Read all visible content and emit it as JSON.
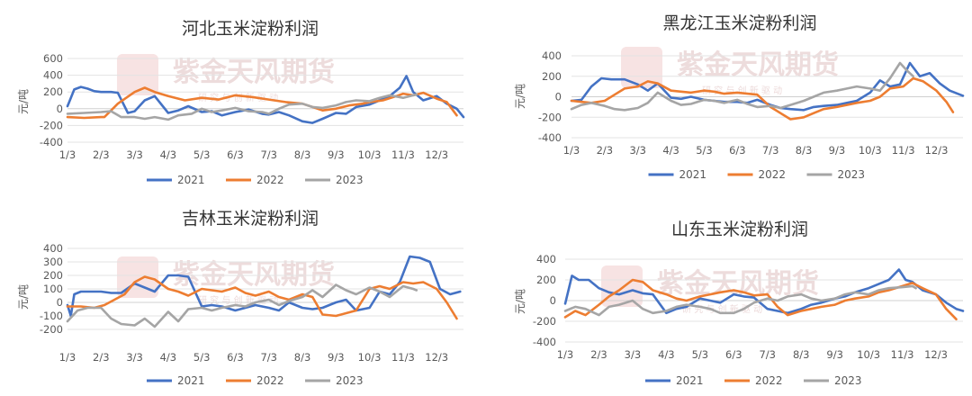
{
  "charts": [
    {
      "title": "河北玉米淀粉利润"
    },
    {
      "title": "黑龙江玉米淀粉利润"
    },
    {
      "title": "吉林玉米淀粉利润"
    },
    {
      "title": "山东玉米淀粉利润"
    }
  ],
  "watermark": {
    "text": "紫金天风期货",
    "sub": "研 究 与 创 新 驱 动"
  },
  "colors": {
    "2021": "#4472C4",
    "2022": "#ED7D31",
    "2023": "#A5A5A5"
  },
  "chart_data": [
    {
      "type": "line",
      "title": "河北玉米淀粉利润",
      "ylabel": "元/吨",
      "xlabel": "",
      "ylim": [
        -400,
        600
      ],
      "yticks": [
        -400,
        -200,
        0,
        200,
        400,
        600
      ],
      "x_ticklabels": [
        "1/3",
        "2/3",
        "3/3",
        "4/3",
        "5/3",
        "6/3",
        "7/3",
        "8/3",
        "9/3",
        "10/3",
        "11/3",
        "12/3"
      ],
      "x_unit": "month index (1=1/3)",
      "legend": [
        "2021",
        "2022",
        "2023"
      ],
      "legend_position": "bottom",
      "grid": true,
      "series": [
        {
          "name": "2021",
          "x": [
            1,
            1.05,
            1.2,
            1.4,
            1.6,
            1.8,
            2,
            2.3,
            2.5,
            2.8,
            3,
            3.3,
            3.6,
            4,
            4.3,
            4.6,
            5,
            5.3,
            5.6,
            6,
            6.4,
            6.8,
            7,
            7.3,
            7.6,
            8,
            8.3,
            8.6,
            9,
            9.3,
            9.6,
            10,
            10.3,
            10.6,
            10.9,
            11.1,
            11.3,
            11.6,
            12,
            12.3,
            12.6,
            12.8
          ],
          "y": [
            30,
            80,
            230,
            260,
            240,
            210,
            200,
            200,
            190,
            -50,
            -30,
            100,
            150,
            -50,
            -20,
            30,
            -40,
            -30,
            -80,
            -40,
            -10,
            -60,
            -70,
            -40,
            -80,
            -150,
            -170,
            -120,
            -50,
            -60,
            20,
            50,
            100,
            150,
            250,
            390,
            200,
            100,
            150,
            60,
            0,
            -100
          ]
        },
        {
          "name": "2022",
          "x": [
            1,
            1.5,
            2,
            2.1,
            2.5,
            3,
            3.3,
            3.6,
            4,
            4.5,
            5,
            5.5,
            6,
            6.5,
            7,
            7.5,
            8,
            8.3,
            8.6,
            9,
            9.4,
            9.8,
            10,
            10.4,
            10.8,
            11,
            11.3,
            11.6,
            12,
            12.3,
            12.6
          ],
          "y": [
            -100,
            -110,
            -100,
            -100,
            60,
            200,
            250,
            200,
            150,
            100,
            130,
            110,
            160,
            140,
            110,
            80,
            60,
            20,
            -20,
            0,
            40,
            60,
            80,
            100,
            150,
            180,
            160,
            190,
            120,
            80,
            -80
          ]
        },
        {
          "name": "2023",
          "x": [
            1,
            1.5,
            2,
            2.3,
            2.6,
            3,
            3.3,
            3.6,
            4,
            4.3,
            4.7,
            5,
            5.3,
            5.6,
            6,
            6.4,
            6.8,
            7,
            7.3,
            7.6,
            8,
            8.3,
            8.6,
            9,
            9.3,
            9.6,
            10,
            10.3,
            10.6,
            11,
            11.3,
            11.4
          ],
          "y": [
            -60,
            -50,
            -40,
            -30,
            -100,
            -100,
            -120,
            -100,
            -130,
            -80,
            -60,
            0,
            -40,
            -20,
            10,
            -30,
            -40,
            -60,
            0,
            50,
            60,
            20,
            10,
            40,
            80,
            100,
            90,
            130,
            160,
            130,
            160,
            170
          ]
        }
      ]
    },
    {
      "type": "line",
      "title": "黑龙江玉米淀粉利润",
      "ylabel": "元/吨",
      "xlabel": "",
      "ylim": [
        -400,
        400
      ],
      "yticks": [
        -400,
        -200,
        0,
        200,
        400
      ],
      "x_ticklabels": [
        "1/3",
        "2/3",
        "3/3",
        "4/3",
        "5/3",
        "6/3",
        "7/3",
        "8/3",
        "9/3",
        "10/3",
        "11/3",
        "12/3"
      ],
      "x_unit": "month index (1=1/3)",
      "legend": [
        "2021",
        "2022",
        "2023"
      ],
      "legend_position": "bottom",
      "grid": true,
      "series": [
        {
          "name": "2021",
          "x": [
            1,
            1.3,
            1.6,
            1.9,
            2.2,
            2.6,
            3,
            3.3,
            3.6,
            4,
            4.3,
            4.6,
            5,
            5.3,
            5.6,
            6,
            6.3,
            6.6,
            7,
            7.3,
            7.6,
            8,
            8.3,
            8.6,
            9,
            9.3,
            9.6,
            10,
            10.3,
            10.6,
            10.9,
            11.2,
            11.5,
            11.8,
            12.1,
            12.4,
            12.8
          ],
          "y": [
            -40,
            -30,
            100,
            180,
            170,
            170,
            120,
            60,
            130,
            -10,
            -20,
            0,
            -30,
            -40,
            -50,
            -50,
            -60,
            -30,
            -80,
            -110,
            -120,
            -130,
            -100,
            -90,
            -80,
            -60,
            -40,
            40,
            160,
            100,
            120,
            330,
            200,
            230,
            130,
            60,
            10
          ]
        },
        {
          "name": "2022",
          "x": [
            1,
            1.3,
            1.6,
            2,
            2.3,
            2.6,
            3,
            3.3,
            3.6,
            4,
            4.3,
            4.6,
            5,
            5.3,
            5.6,
            6,
            6.3,
            6.6,
            7,
            7.3,
            7.6,
            8,
            8.3,
            8.6,
            9,
            9.3,
            9.6,
            10,
            10.3,
            10.6,
            11,
            11.3,
            11.6,
            12,
            12.3,
            12.5
          ],
          "y": [
            -40,
            -50,
            -60,
            -40,
            20,
            80,
            100,
            150,
            130,
            60,
            50,
            40,
            60,
            50,
            30,
            40,
            30,
            20,
            -100,
            -160,
            -220,
            -200,
            -160,
            -120,
            -100,
            -80,
            -60,
            -40,
            0,
            80,
            100,
            180,
            150,
            60,
            -50,
            -150
          ]
        },
        {
          "name": "2023",
          "x": [
            1,
            1.3,
            1.6,
            2,
            2.3,
            2.6,
            3,
            3.3,
            3.6,
            4,
            4.3,
            4.6,
            5,
            5.3,
            5.6,
            6,
            6.3,
            6.6,
            7,
            7.3,
            7.6,
            8,
            8.3,
            8.6,
            9,
            9.3,
            9.6,
            10,
            10.3,
            10.6,
            10.9,
            11.1,
            11.3
          ],
          "y": [
            -120,
            -80,
            -60,
            -90,
            -120,
            -130,
            -110,
            -60,
            40,
            -40,
            -80,
            -70,
            -30,
            -40,
            -60,
            -30,
            -70,
            -100,
            -90,
            -110,
            -80,
            -40,
            0,
            40,
            60,
            80,
            100,
            80,
            60,
            180,
            330,
            260,
            200
          ]
        }
      ]
    },
    {
      "type": "line",
      "title": "吉林玉米淀粉利润",
      "ylabel": "元/吨",
      "xlabel": "",
      "ylim": [
        -200,
        400
      ],
      "yticks": [
        -200,
        -100,
        0,
        100,
        200,
        300,
        400
      ],
      "x_ticklabels": [
        "1/3",
        "2/3",
        "3/3",
        "4/3",
        "5/3",
        "6/3",
        "7/3",
        "8/3",
        "9/3",
        "10/3",
        "11/3",
        "12/3"
      ],
      "x_unit": "month index (1=1/3)",
      "legend": [
        "2021",
        "2022",
        "2023"
      ],
      "legend_position": "bottom",
      "grid": true,
      "series": [
        {
          "name": "2021",
          "x": [
            1,
            1.1,
            1.2,
            1.4,
            1.7,
            2,
            2.3,
            2.6,
            3,
            3.3,
            3.6,
            4,
            4.3,
            4.6,
            5,
            5.3,
            5.6,
            6,
            6.3,
            6.6,
            7,
            7.3,
            7.6,
            8,
            8.3,
            8.6,
            9,
            9.3,
            9.6,
            10,
            10.3,
            10.6,
            10.9,
            11.2,
            11.5,
            11.8,
            12.1,
            12.4,
            12.7
          ],
          "y": [
            -20,
            -100,
            60,
            80,
            80,
            80,
            70,
            70,
            140,
            110,
            80,
            200,
            200,
            190,
            -30,
            -20,
            -30,
            -60,
            -40,
            -20,
            -40,
            -60,
            0,
            -40,
            -50,
            -40,
            0,
            20,
            -60,
            -40,
            80,
            60,
            150,
            340,
            330,
            300,
            100,
            60,
            80
          ]
        },
        {
          "name": "2022",
          "x": [
            1,
            1.4,
            1.8,
            2.1,
            2.4,
            2.7,
            3,
            3.3,
            3.6,
            4,
            4.3,
            4.6,
            5,
            5.3,
            5.6,
            6,
            6.3,
            6.6,
            7,
            7.3,
            7.6,
            8,
            8.3,
            8.6,
            9,
            9.3,
            9.6,
            10,
            10.3,
            10.6,
            11,
            11.3,
            11.6,
            12,
            12.3,
            12.6
          ],
          "y": [
            -30,
            -30,
            -40,
            -20,
            20,
            60,
            150,
            190,
            170,
            100,
            80,
            50,
            100,
            90,
            80,
            110,
            70,
            50,
            80,
            40,
            20,
            60,
            40,
            -90,
            -100,
            -80,
            -60,
            100,
            120,
            100,
            150,
            140,
            150,
            100,
            0,
            -120
          ]
        },
        {
          "name": "2023",
          "x": [
            1,
            1.3,
            1.6,
            2,
            2.3,
            2.6,
            3,
            3.3,
            3.6,
            4,
            4.3,
            4.6,
            5,
            5.3,
            5.6,
            6,
            6.3,
            6.6,
            7,
            7.3,
            7.6,
            8,
            8.3,
            8.6,
            9,
            9.3,
            9.6,
            10,
            10.3,
            10.6,
            11,
            11.3,
            11.4
          ],
          "y": [
            -140,
            -60,
            -40,
            -40,
            -120,
            -160,
            -170,
            -120,
            -180,
            -70,
            -140,
            -50,
            -40,
            -60,
            -40,
            -20,
            -30,
            0,
            20,
            -20,
            10,
            40,
            90,
            40,
            130,
            90,
            60,
            110,
            80,
            40,
            120,
            100,
            90
          ]
        }
      ]
    },
    {
      "type": "line",
      "title": "山东玉米淀粉利润",
      "ylabel": "元/吨",
      "xlabel": "",
      "ylim": [
        -400,
        400
      ],
      "yticks": [
        -400,
        -200,
        0,
        200,
        400
      ],
      "x_ticklabels": [
        "1/3",
        "2/3",
        "3/3",
        "4/3",
        "5/3",
        "6/3",
        "7/3",
        "8/3",
        "9/3",
        "10/3",
        "11/3",
        "12/3"
      ],
      "x_unit": "month index (1=1/3)",
      "legend": [
        "2021",
        "2022",
        "2023"
      ],
      "legend_position": "bottom",
      "grid": true,
      "series": [
        {
          "name": "2021",
          "x": [
            1,
            1.2,
            1.4,
            1.7,
            2,
            2.3,
            2.6,
            3,
            3.3,
            3.6,
            4,
            4.3,
            4.6,
            5,
            5.3,
            5.6,
            6,
            6.3,
            6.6,
            7,
            7.3,
            7.6,
            8,
            8.3,
            8.6,
            9,
            9.3,
            9.6,
            10,
            10.3,
            10.6,
            10.9,
            11.1,
            11.3,
            11.6,
            12,
            12.3,
            12.6,
            12.8
          ],
          "y": [
            -30,
            240,
            200,
            200,
            120,
            80,
            60,
            100,
            70,
            60,
            -120,
            -80,
            -60,
            20,
            0,
            -20,
            60,
            40,
            30,
            -80,
            -100,
            -120,
            -80,
            -40,
            -20,
            20,
            40,
            80,
            120,
            160,
            200,
            300,
            200,
            180,
            100,
            60,
            -20,
            -80,
            -100
          ]
        },
        {
          "name": "2022",
          "x": [
            1,
            1.3,
            1.6,
            2,
            2.3,
            2.6,
            3,
            3.3,
            3.6,
            4,
            4.3,
            4.6,
            5,
            5.3,
            5.6,
            6,
            6.3,
            6.6,
            7,
            7.3,
            7.6,
            8,
            8.3,
            8.6,
            9,
            9.3,
            9.6,
            10,
            10.3,
            10.6,
            11,
            11.3,
            11.6,
            12,
            12.3,
            12.6
          ],
          "y": [
            -160,
            -100,
            -140,
            -40,
            40,
            100,
            200,
            180,
            100,
            60,
            20,
            0,
            40,
            60,
            80,
            100,
            80,
            50,
            60,
            -60,
            -140,
            -100,
            -80,
            -60,
            -40,
            0,
            20,
            40,
            80,
            100,
            140,
            170,
            120,
            60,
            -80,
            -180
          ]
        },
        {
          "name": "2023",
          "x": [
            1,
            1.3,
            1.6,
            2,
            2.3,
            2.6,
            3,
            3.3,
            3.6,
            4,
            4.3,
            4.6,
            5,
            5.3,
            5.6,
            6,
            6.3,
            6.6,
            7,
            7.3,
            7.6,
            8,
            8.3,
            8.6,
            9,
            9.3,
            9.6,
            10,
            10.3,
            10.6,
            11,
            11.3,
            11.4
          ],
          "y": [
            -100,
            -60,
            -80,
            -140,
            -60,
            -40,
            0,
            -80,
            -120,
            -100,
            -60,
            -40,
            -60,
            -80,
            -120,
            -120,
            -80,
            -20,
            20,
            0,
            40,
            60,
            20,
            0,
            20,
            60,
            80,
            60,
            100,
            120,
            130,
            140,
            120
          ]
        }
      ]
    }
  ]
}
